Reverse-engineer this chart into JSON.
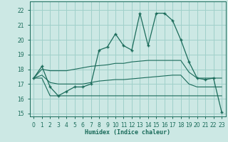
{
  "xlabel": "Humidex (Indice chaleur)",
  "bg_color": "#cce8e4",
  "grid_color": "#a0d0ca",
  "line_color": "#1a6b5a",
  "xlim": [
    -0.5,
    23.5
  ],
  "ylim": [
    14.8,
    22.6
  ],
  "yticks": [
    15,
    16,
    17,
    18,
    19,
    20,
    21,
    22
  ],
  "xticks": [
    0,
    1,
    2,
    3,
    4,
    5,
    6,
    7,
    8,
    9,
    10,
    11,
    12,
    13,
    14,
    15,
    16,
    17,
    18,
    19,
    20,
    21,
    22,
    23
  ],
  "main_line": [
    17.4,
    18.2,
    16.8,
    16.2,
    16.5,
    16.8,
    16.8,
    17.0,
    19.3,
    19.5,
    20.4,
    19.6,
    19.3,
    21.8,
    19.6,
    21.8,
    21.8,
    21.3,
    20.0,
    18.5,
    17.4,
    17.3,
    17.4,
    15.1
  ],
  "upper_env": [
    17.4,
    18.0,
    17.9,
    17.9,
    17.9,
    18.0,
    18.1,
    18.2,
    18.25,
    18.3,
    18.4,
    18.4,
    18.5,
    18.55,
    18.6,
    18.6,
    18.6,
    18.6,
    18.6,
    17.8,
    17.4,
    17.4,
    17.4,
    17.4
  ],
  "lower_env": [
    17.4,
    17.4,
    16.2,
    16.2,
    16.2,
    16.2,
    16.2,
    16.2,
    16.2,
    16.2,
    16.2,
    16.2,
    16.2,
    16.2,
    16.2,
    16.2,
    16.2,
    16.2,
    16.2,
    16.2,
    16.2,
    16.2,
    16.2,
    16.2
  ],
  "mid_env": [
    17.4,
    17.6,
    17.1,
    17.0,
    17.0,
    17.0,
    17.0,
    17.1,
    17.2,
    17.25,
    17.3,
    17.3,
    17.35,
    17.4,
    17.45,
    17.5,
    17.55,
    17.6,
    17.6,
    17.0,
    16.8,
    16.8,
    16.8,
    16.8
  ]
}
